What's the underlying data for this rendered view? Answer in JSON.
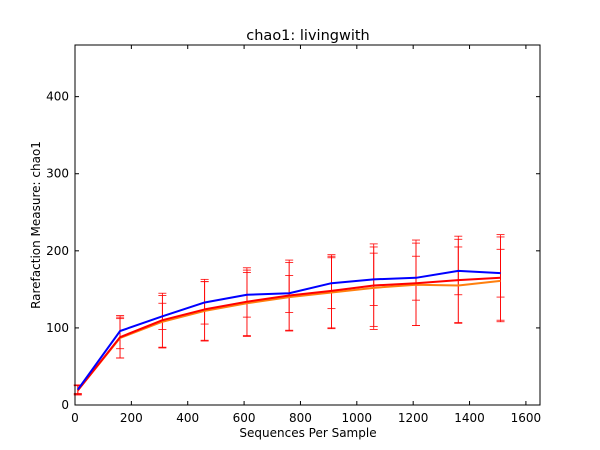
{
  "chart_data": {
    "type": "line",
    "title": "chao1: livingwith",
    "xlabel": "Sequences Per Sample",
    "ylabel": "Rarefaction Measure: chao1",
    "xlim": [
      0,
      1650
    ],
    "ylim": [
      0,
      467
    ],
    "xticks": [
      0,
      200,
      400,
      600,
      800,
      1000,
      1200,
      1400,
      1600
    ],
    "yticks": [
      0,
      100,
      200,
      300,
      400
    ],
    "grid": false,
    "legend": "none",
    "x": [
      10,
      160,
      310,
      460,
      610,
      760,
      910,
      1060,
      1210,
      1360,
      1510
    ],
    "series": [
      {
        "color": "#ff7f0e",
        "values": [
          19,
          87,
          108,
          122,
          132,
          140,
          146,
          152,
          156,
          155,
          161
        ],
        "err_low": [
          13,
          61,
          75,
          84,
          90,
          97,
          99,
          98,
          103,
          107,
          110
        ],
        "err_high": [
          26,
          114,
          142,
          160,
          175,
          185,
          191,
          205,
          210,
          215,
          218
        ]
      },
      {
        "color": "#ff0000",
        "values": [
          19,
          88,
          110,
          124,
          134,
          142,
          148,
          155,
          158,
          162,
          165
        ],
        "err_low": [
          14,
          61,
          74,
          83,
          89,
          96,
          100,
          102,
          103,
          106,
          108
        ],
        "err_high": [
          26,
          116,
          145,
          163,
          178,
          188,
          195,
          209,
          214,
          219,
          221
        ]
      },
      {
        "color": "#0000ff",
        "values": [
          20,
          96,
          115,
          133,
          143,
          145,
          158,
          163,
          165,
          174,
          171
        ],
        "err_low": [
          15,
          73,
          98,
          105,
          114,
          120,
          125,
          129,
          136,
          143,
          140
        ],
        "err_high": [
          25,
          112,
          132,
          160,
          172,
          168,
          193,
          197,
          193,
          205,
          202
        ]
      }
    ]
  }
}
